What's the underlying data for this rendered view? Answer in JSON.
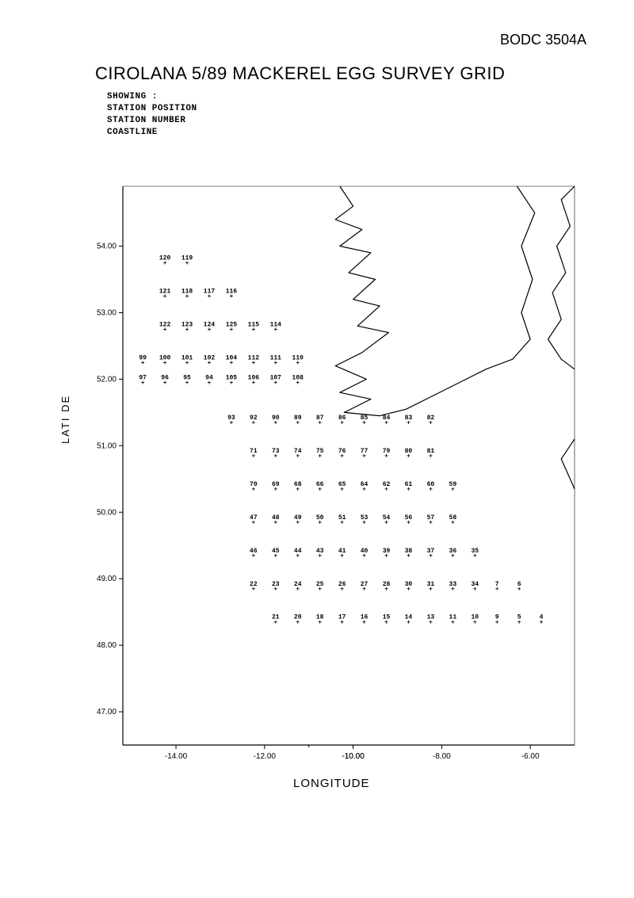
{
  "doc_id": "BODC 3504A",
  "title": "CIROLANA 5/89 MACKEREL EGG SURVEY GRID",
  "showing_header": "SHOWING :",
  "showing_lines": [
    "STATION POSITION",
    "STATION NUMBER",
    "COASTLINE"
  ],
  "xlabel": "LONGITUDE",
  "ylabel": "LATI   DE",
  "chart": {
    "type": "scatter-map",
    "background_color": "#ffffff",
    "axis_color": "#000000",
    "xlim": [
      -15.2,
      -5.0
    ],
    "ylim": [
      46.5,
      54.9
    ],
    "xticks": [
      -14.0,
      -12.0,
      -10.0,
      -8.0,
      -6.0
    ],
    "xtick_labels": [
      "-14.00",
      "-12.00",
      "-10.00",
      "-8.00",
      "-6.00"
    ],
    "yticks": [
      47.0,
      48.0,
      49.0,
      50.0,
      51.0,
      52.0,
      53.0,
      54.0
    ],
    "ytick_labels": [
      "47.00",
      "48.00",
      "49.00",
      "50.00",
      "51.00",
      "52.00",
      "53.00",
      "54.00"
    ],
    "marker_symbol": "+",
    "marker_size": 4,
    "label_fontsize": 8,
    "coastline_color": "#000000",
    "coastline_width": 1.2
  },
  "stations": [
    {
      "n": "120",
      "lon": -14.25,
      "lat": 53.75
    },
    {
      "n": "119",
      "lon": -13.75,
      "lat": 53.75
    },
    {
      "n": "121",
      "lon": -14.25,
      "lat": 53.25
    },
    {
      "n": "118",
      "lon": -13.75,
      "lat": 53.25
    },
    {
      "n": "117",
      "lon": -13.25,
      "lat": 53.25
    },
    {
      "n": "116",
      "lon": -12.75,
      "lat": 53.25
    },
    {
      "n": "122",
      "lon": -14.25,
      "lat": 52.75
    },
    {
      "n": "123",
      "lon": -13.75,
      "lat": 52.75
    },
    {
      "n": "124",
      "lon": -13.25,
      "lat": 52.75
    },
    {
      "n": "125",
      "lon": -12.75,
      "lat": 52.75
    },
    {
      "n": "115",
      "lon": -12.25,
      "lat": 52.75
    },
    {
      "n": "114",
      "lon": -11.75,
      "lat": 52.75
    },
    {
      "n": "99",
      "lon": -14.75,
      "lat": 52.25
    },
    {
      "n": "100",
      "lon": -14.25,
      "lat": 52.25
    },
    {
      "n": "101",
      "lon": -13.75,
      "lat": 52.25
    },
    {
      "n": "102",
      "lon": -13.25,
      "lat": 52.25
    },
    {
      "n": "104",
      "lon": -12.75,
      "lat": 52.25
    },
    {
      "n": "112",
      "lon": -12.25,
      "lat": 52.25
    },
    {
      "n": "111",
      "lon": -11.75,
      "lat": 52.25
    },
    {
      "n": "110",
      "lon": -11.25,
      "lat": 52.25
    },
    {
      "n": "97",
      "lon": -14.75,
      "lat": 51.95
    },
    {
      "n": "96",
      "lon": -14.25,
      "lat": 51.95
    },
    {
      "n": "95",
      "lon": -13.75,
      "lat": 51.95
    },
    {
      "n": "94",
      "lon": -13.25,
      "lat": 51.95
    },
    {
      "n": "105",
      "lon": -12.75,
      "lat": 51.95
    },
    {
      "n": "106",
      "lon": -12.25,
      "lat": 51.95
    },
    {
      "n": "107",
      "lon": -11.75,
      "lat": 51.95
    },
    {
      "n": "108",
      "lon": -11.25,
      "lat": 51.95
    },
    {
      "n": "93",
      "lon": -12.75,
      "lat": 51.35
    },
    {
      "n": "92",
      "lon": -12.25,
      "lat": 51.35
    },
    {
      "n": "90",
      "lon": -11.75,
      "lat": 51.35
    },
    {
      "n": "89",
      "lon": -11.25,
      "lat": 51.35
    },
    {
      "n": "87",
      "lon": -10.75,
      "lat": 51.35
    },
    {
      "n": "86",
      "lon": -10.25,
      "lat": 51.35
    },
    {
      "n": "85",
      "lon": -9.75,
      "lat": 51.35
    },
    {
      "n": "84",
      "lon": -9.25,
      "lat": 51.35
    },
    {
      "n": "83",
      "lon": -8.75,
      "lat": 51.35
    },
    {
      "n": "82",
      "lon": -8.25,
      "lat": 51.35
    },
    {
      "n": "71",
      "lon": -12.25,
      "lat": 50.85
    },
    {
      "n": "73",
      "lon": -11.75,
      "lat": 50.85
    },
    {
      "n": "74",
      "lon": -11.25,
      "lat": 50.85
    },
    {
      "n": "75",
      "lon": -10.75,
      "lat": 50.85
    },
    {
      "n": "76",
      "lon": -10.25,
      "lat": 50.85
    },
    {
      "n": "77",
      "lon": -9.75,
      "lat": 50.85
    },
    {
      "n": "79",
      "lon": -9.25,
      "lat": 50.85
    },
    {
      "n": "80",
      "lon": -8.75,
      "lat": 50.85
    },
    {
      "n": "81",
      "lon": -8.25,
      "lat": 50.85
    },
    {
      "n": "70",
      "lon": -12.25,
      "lat": 50.35
    },
    {
      "n": "69",
      "lon": -11.75,
      "lat": 50.35
    },
    {
      "n": "68",
      "lon": -11.25,
      "lat": 50.35
    },
    {
      "n": "66",
      "lon": -10.75,
      "lat": 50.35
    },
    {
      "n": "65",
      "lon": -10.25,
      "lat": 50.35
    },
    {
      "n": "64",
      "lon": -9.75,
      "lat": 50.35
    },
    {
      "n": "62",
      "lon": -9.25,
      "lat": 50.35
    },
    {
      "n": "61",
      "lon": -8.75,
      "lat": 50.35
    },
    {
      "n": "60",
      "lon": -8.25,
      "lat": 50.35
    },
    {
      "n": "59",
      "lon": -7.75,
      "lat": 50.35
    },
    {
      "n": "47",
      "lon": -12.25,
      "lat": 49.85
    },
    {
      "n": "48",
      "lon": -11.75,
      "lat": 49.85
    },
    {
      "n": "49",
      "lon": -11.25,
      "lat": 49.85
    },
    {
      "n": "50",
      "lon": -10.75,
      "lat": 49.85
    },
    {
      "n": "51",
      "lon": -10.25,
      "lat": 49.85
    },
    {
      "n": "53",
      "lon": -9.75,
      "lat": 49.85
    },
    {
      "n": "54",
      "lon": -9.25,
      "lat": 49.85
    },
    {
      "n": "56",
      "lon": -8.75,
      "lat": 49.85
    },
    {
      "n": "57",
      "lon": -8.25,
      "lat": 49.85
    },
    {
      "n": "58",
      "lon": -7.75,
      "lat": 49.85
    },
    {
      "n": "46",
      "lon": -12.25,
      "lat": 49.35
    },
    {
      "n": "45",
      "lon": -11.75,
      "lat": 49.35
    },
    {
      "n": "44",
      "lon": -11.25,
      "lat": 49.35
    },
    {
      "n": "43",
      "lon": -10.75,
      "lat": 49.35
    },
    {
      "n": "41",
      "lon": -10.25,
      "lat": 49.35
    },
    {
      "n": "40",
      "lon": -9.75,
      "lat": 49.35
    },
    {
      "n": "39",
      "lon": -9.25,
      "lat": 49.35
    },
    {
      "n": "38",
      "lon": -8.75,
      "lat": 49.35
    },
    {
      "n": "37",
      "lon": -8.25,
      "lat": 49.35
    },
    {
      "n": "36",
      "lon": -7.75,
      "lat": 49.35
    },
    {
      "n": "35",
      "lon": -7.25,
      "lat": 49.35
    },
    {
      "n": "22",
      "lon": -12.25,
      "lat": 48.85
    },
    {
      "n": "23",
      "lon": -11.75,
      "lat": 48.85
    },
    {
      "n": "24",
      "lon": -11.25,
      "lat": 48.85
    },
    {
      "n": "25",
      "lon": -10.75,
      "lat": 48.85
    },
    {
      "n": "26",
      "lon": -10.25,
      "lat": 48.85
    },
    {
      "n": "27",
      "lon": -9.75,
      "lat": 48.85
    },
    {
      "n": "28",
      "lon": -9.25,
      "lat": 48.85
    },
    {
      "n": "30",
      "lon": -8.75,
      "lat": 48.85
    },
    {
      "n": "31",
      "lon": -8.25,
      "lat": 48.85
    },
    {
      "n": "33",
      "lon": -7.75,
      "lat": 48.85
    },
    {
      "n": "34",
      "lon": -7.25,
      "lat": 48.85
    },
    {
      "n": "7",
      "lon": -6.75,
      "lat": 48.85
    },
    {
      "n": "6",
      "lon": -6.25,
      "lat": 48.85
    },
    {
      "n": "21",
      "lon": -11.75,
      "lat": 48.35
    },
    {
      "n": "20",
      "lon": -11.25,
      "lat": 48.35
    },
    {
      "n": "18",
      "lon": -10.75,
      "lat": 48.35
    },
    {
      "n": "17",
      "lon": -10.25,
      "lat": 48.35
    },
    {
      "n": "16",
      "lon": -9.75,
      "lat": 48.35
    },
    {
      "n": "15",
      "lon": -9.25,
      "lat": 48.35
    },
    {
      "n": "14",
      "lon": -8.75,
      "lat": 48.35
    },
    {
      "n": "13",
      "lon": -8.25,
      "lat": 48.35
    },
    {
      "n": "11",
      "lon": -7.75,
      "lat": 48.35
    },
    {
      "n": "10",
      "lon": -7.25,
      "lat": 48.35
    },
    {
      "n": "9",
      "lon": -6.75,
      "lat": 48.35
    },
    {
      "n": "5",
      "lon": -6.25,
      "lat": 48.35
    },
    {
      "n": "4",
      "lon": -5.75,
      "lat": 48.35
    }
  ],
  "coastline": [
    [
      [
        -5.0,
        54.9
      ],
      [
        -5.3,
        54.7
      ],
      [
        -5.1,
        54.3
      ],
      [
        -5.4,
        54.0
      ],
      [
        -5.2,
        53.6
      ],
      [
        -5.5,
        53.3
      ],
      [
        -5.3,
        52.9
      ],
      [
        -5.6,
        52.6
      ],
      [
        -5.3,
        52.3
      ],
      [
        -5.0,
        52.15
      ]
    ],
    [
      [
        -5.0,
        51.1
      ],
      [
        -5.3,
        50.8
      ],
      [
        -5.0,
        50.35
      ]
    ],
    [
      [
        -10.3,
        54.9
      ],
      [
        -10.0,
        54.6
      ],
      [
        -10.4,
        54.4
      ],
      [
        -9.8,
        54.25
      ],
      [
        -10.3,
        54.0
      ],
      [
        -9.6,
        53.9
      ],
      [
        -10.1,
        53.6
      ],
      [
        -9.5,
        53.5
      ],
      [
        -10.0,
        53.2
      ],
      [
        -9.4,
        53.1
      ],
      [
        -9.9,
        52.8
      ],
      [
        -9.2,
        52.7
      ],
      [
        -9.8,
        52.4
      ],
      [
        -10.4,
        52.2
      ],
      [
        -9.7,
        52.0
      ],
      [
        -10.3,
        51.8
      ],
      [
        -9.6,
        51.7
      ],
      [
        -10.2,
        51.5
      ],
      [
        -9.4,
        51.45
      ],
      [
        -8.8,
        51.55
      ],
      [
        -8.2,
        51.75
      ],
      [
        -7.6,
        51.95
      ],
      [
        -7.0,
        52.15
      ],
      [
        -6.4,
        52.3
      ],
      [
        -6.0,
        52.6
      ],
      [
        -6.2,
        53.0
      ],
      [
        -5.95,
        53.5
      ],
      [
        -6.2,
        54.0
      ],
      [
        -5.9,
        54.5
      ],
      [
        -6.3,
        54.9
      ]
    ]
  ]
}
